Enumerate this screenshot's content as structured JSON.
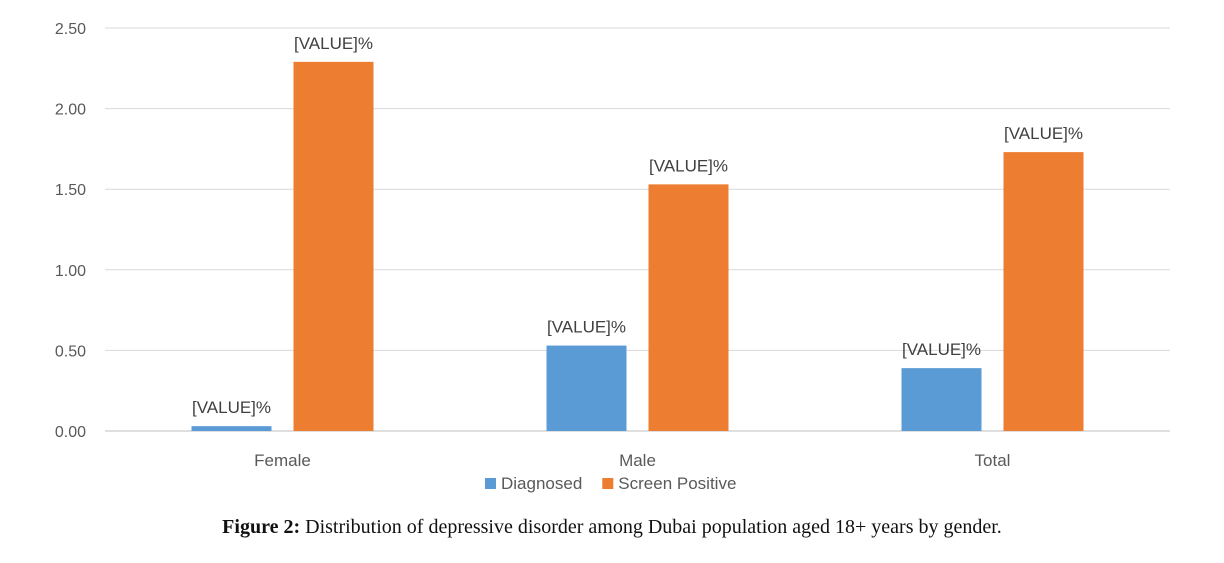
{
  "chart_data": {
    "type": "bar",
    "categories": [
      "Female",
      "Male",
      "Total"
    ],
    "series": [
      {
        "name": "Diagnosed",
        "values": [
          0.03,
          0.53,
          0.39
        ],
        "labels": [
          "[VALUE]%",
          "[VALUE]%",
          "[VALUE]%"
        ],
        "color": "#5B9BD5"
      },
      {
        "name": "Screen Positive",
        "values": [
          2.29,
          1.53,
          1.73
        ],
        "labels": [
          "[VALUE]%",
          "[VALUE]%",
          "[VALUE]%"
        ],
        "color": "#ED7D31"
      }
    ],
    "yticks": [
      "0.00",
      "0.50",
      "1.00",
      "1.50",
      "2.00",
      "2.50"
    ],
    "ylim": [
      0,
      2.5
    ],
    "title": "",
    "xlabel": "",
    "ylabel": "",
    "legend_position": "bottom",
    "grid": true
  },
  "caption": {
    "label": "Figure 2:",
    "text": " Distribution of depressive disorder among Dubai population aged 18+ years by gender."
  }
}
